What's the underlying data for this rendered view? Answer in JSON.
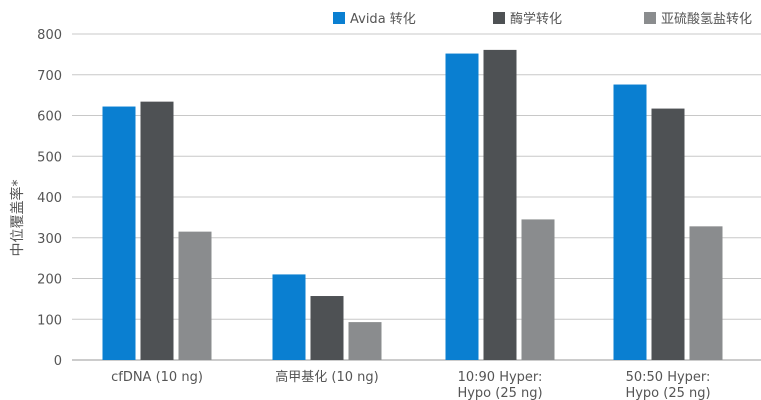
{
  "chart_data": {
    "type": "bar",
    "title": "",
    "xlabel": "",
    "ylabel": "中位覆盖率*",
    "ylim": [
      0,
      800
    ],
    "yticks": [
      0,
      100,
      200,
      300,
      400,
      500,
      600,
      700,
      800
    ],
    "grid": true,
    "legend_position": "top-right",
    "categories": [
      [
        "cfDNA (10 ng)"
      ],
      [
        "高甲基化 (10 ng)"
      ],
      [
        "10:90 Hyper:",
        "Hypo (25 ng)"
      ],
      [
        "50:50 Hyper:",
        "Hypo (25 ng)"
      ]
    ],
    "series": [
      {
        "name": "Avida 转化",
        "color": "#0a7fd1",
        "values": [
          622,
          210,
          752,
          676
        ]
      },
      {
        "name": "酶学转化",
        "color": "#4e5154",
        "values": [
          634,
          157,
          761,
          617
        ]
      },
      {
        "name": "亚硫酸氢盐转化",
        "color": "#8a8c8e",
        "values": [
          315,
          93,
          345,
          328
        ]
      }
    ]
  }
}
